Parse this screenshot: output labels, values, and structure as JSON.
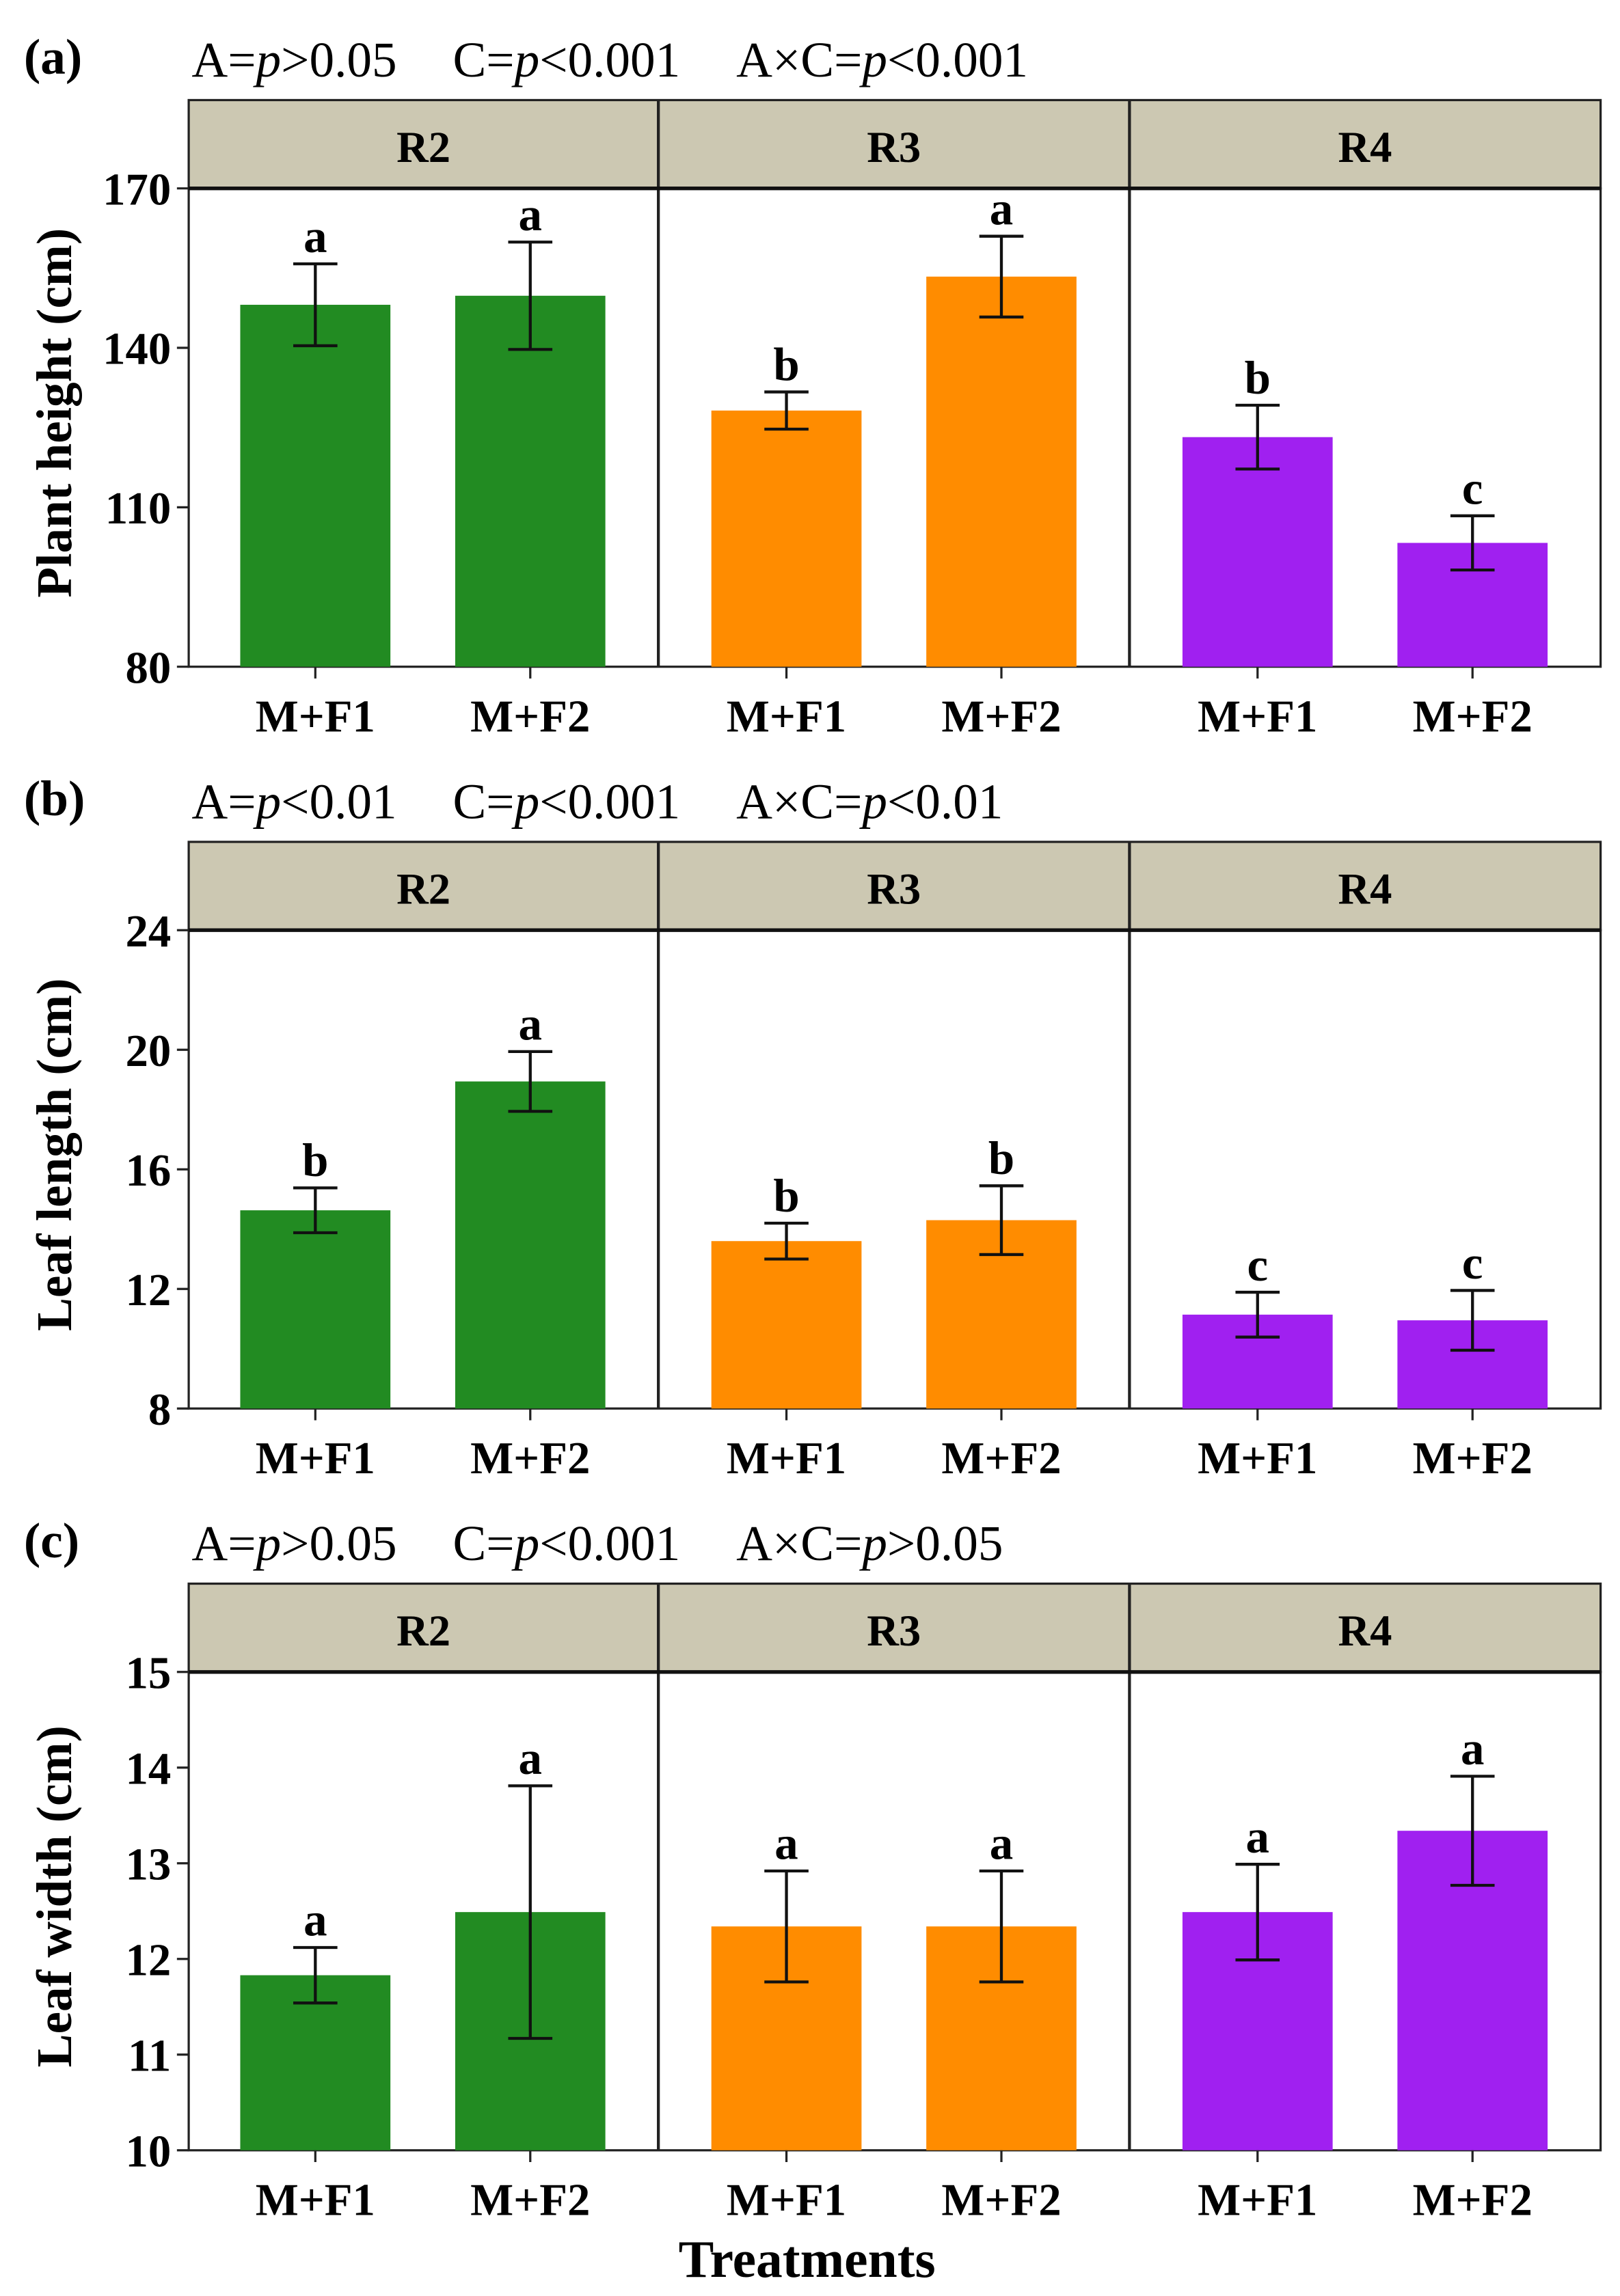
{
  "colors": {
    "R2": "#228B22",
    "R3": "#FF8C00",
    "R4": "#A020F0",
    "strip": "#CCC8B2"
  },
  "chart_data": [
    {
      "type": "bar",
      "panel_label": "(a)",
      "stats": [
        {
          "pre": "A=",
          "p": "p",
          "post": ">0.05"
        },
        {
          "pre": "C=",
          "p": "p",
          "post": "<0.001"
        },
        {
          "pre": "A×C=",
          "p": "p",
          "post": "<0.001"
        }
      ],
      "ylabel": "Plant height (cm)",
      "ylim": [
        80,
        170
      ],
      "yticks": [
        80,
        110,
        140,
        170
      ],
      "facets": [
        {
          "name": "R2",
          "categories": [
            "M+F1",
            "M+F2"
          ],
          "values": [
            148.1,
            149.8
          ],
          "errors": [
            7.7,
            10.1
          ],
          "letters": [
            "a",
            "a"
          ]
        },
        {
          "name": "R3",
          "categories": [
            "M+F1",
            "M+F2"
          ],
          "values": [
            128.2,
            153.4
          ],
          "errors": [
            3.5,
            7.6
          ],
          "letters": [
            "b",
            "a"
          ]
        },
        {
          "name": "R4",
          "categories": [
            "M+F1",
            "M+F2"
          ],
          "values": [
            123.2,
            103.3
          ],
          "errors": [
            6.0,
            5.1
          ],
          "letters": [
            "b",
            "c"
          ]
        }
      ]
    },
    {
      "type": "bar",
      "panel_label": "(b)",
      "stats": [
        {
          "pre": "A=",
          "p": "p",
          "post": "<0.01"
        },
        {
          "pre": "C=",
          "p": "p",
          "post": "<0.001"
        },
        {
          "pre": "A×C=",
          "p": "p",
          "post": "<0.01"
        }
      ],
      "ylabel": "Leaf length (cm)",
      "ylim": [
        8,
        24
      ],
      "yticks": [
        8,
        12,
        16,
        20,
        24
      ],
      "facets": [
        {
          "name": "R2",
          "categories": [
            "M+F1",
            "M+F2"
          ],
          "values": [
            14.63,
            18.94
          ],
          "errors": [
            0.75,
            1.0
          ],
          "letters": [
            "b",
            "a"
          ]
        },
        {
          "name": "R3",
          "categories": [
            "M+F1",
            "M+F2"
          ],
          "values": [
            13.6,
            14.3
          ],
          "errors": [
            0.6,
            1.15
          ],
          "letters": [
            "b",
            "b"
          ]
        },
        {
          "name": "R4",
          "categories": [
            "M+F1",
            "M+F2"
          ],
          "values": [
            11.14,
            10.95
          ],
          "errors": [
            0.75,
            1.0
          ],
          "letters": [
            "c",
            "c"
          ]
        }
      ]
    },
    {
      "type": "bar",
      "panel_label": "(c)",
      "stats": [
        {
          "pre": "A=",
          "p": "p",
          "post": ">0.05"
        },
        {
          "pre": "C=",
          "p": "p",
          "post": "<0.001"
        },
        {
          "pre": "A×C=",
          "p": "p",
          "post": ">0.05"
        }
      ],
      "ylabel": "Leaf width (cm)",
      "ylim": [
        10,
        15
      ],
      "yticks": [
        10,
        11,
        12,
        13,
        14,
        15
      ],
      "xlabel": "Treatments",
      "facets": [
        {
          "name": "R2",
          "categories": [
            "M+F1",
            "M+F2"
          ],
          "values": [
            11.83,
            12.49
          ],
          "errors": [
            0.29,
            1.32
          ],
          "letters": [
            "a",
            "a"
          ]
        },
        {
          "name": "R3",
          "categories": [
            "M+F1",
            "M+F2"
          ],
          "values": [
            12.34,
            12.34
          ],
          "errors": [
            0.58,
            0.58
          ],
          "letters": [
            "a",
            "a"
          ]
        },
        {
          "name": "R4",
          "categories": [
            "M+F1",
            "M+F2"
          ],
          "values": [
            12.49,
            13.34
          ],
          "errors": [
            0.5,
            0.57
          ],
          "letters": [
            "a",
            "a"
          ]
        }
      ]
    }
  ]
}
